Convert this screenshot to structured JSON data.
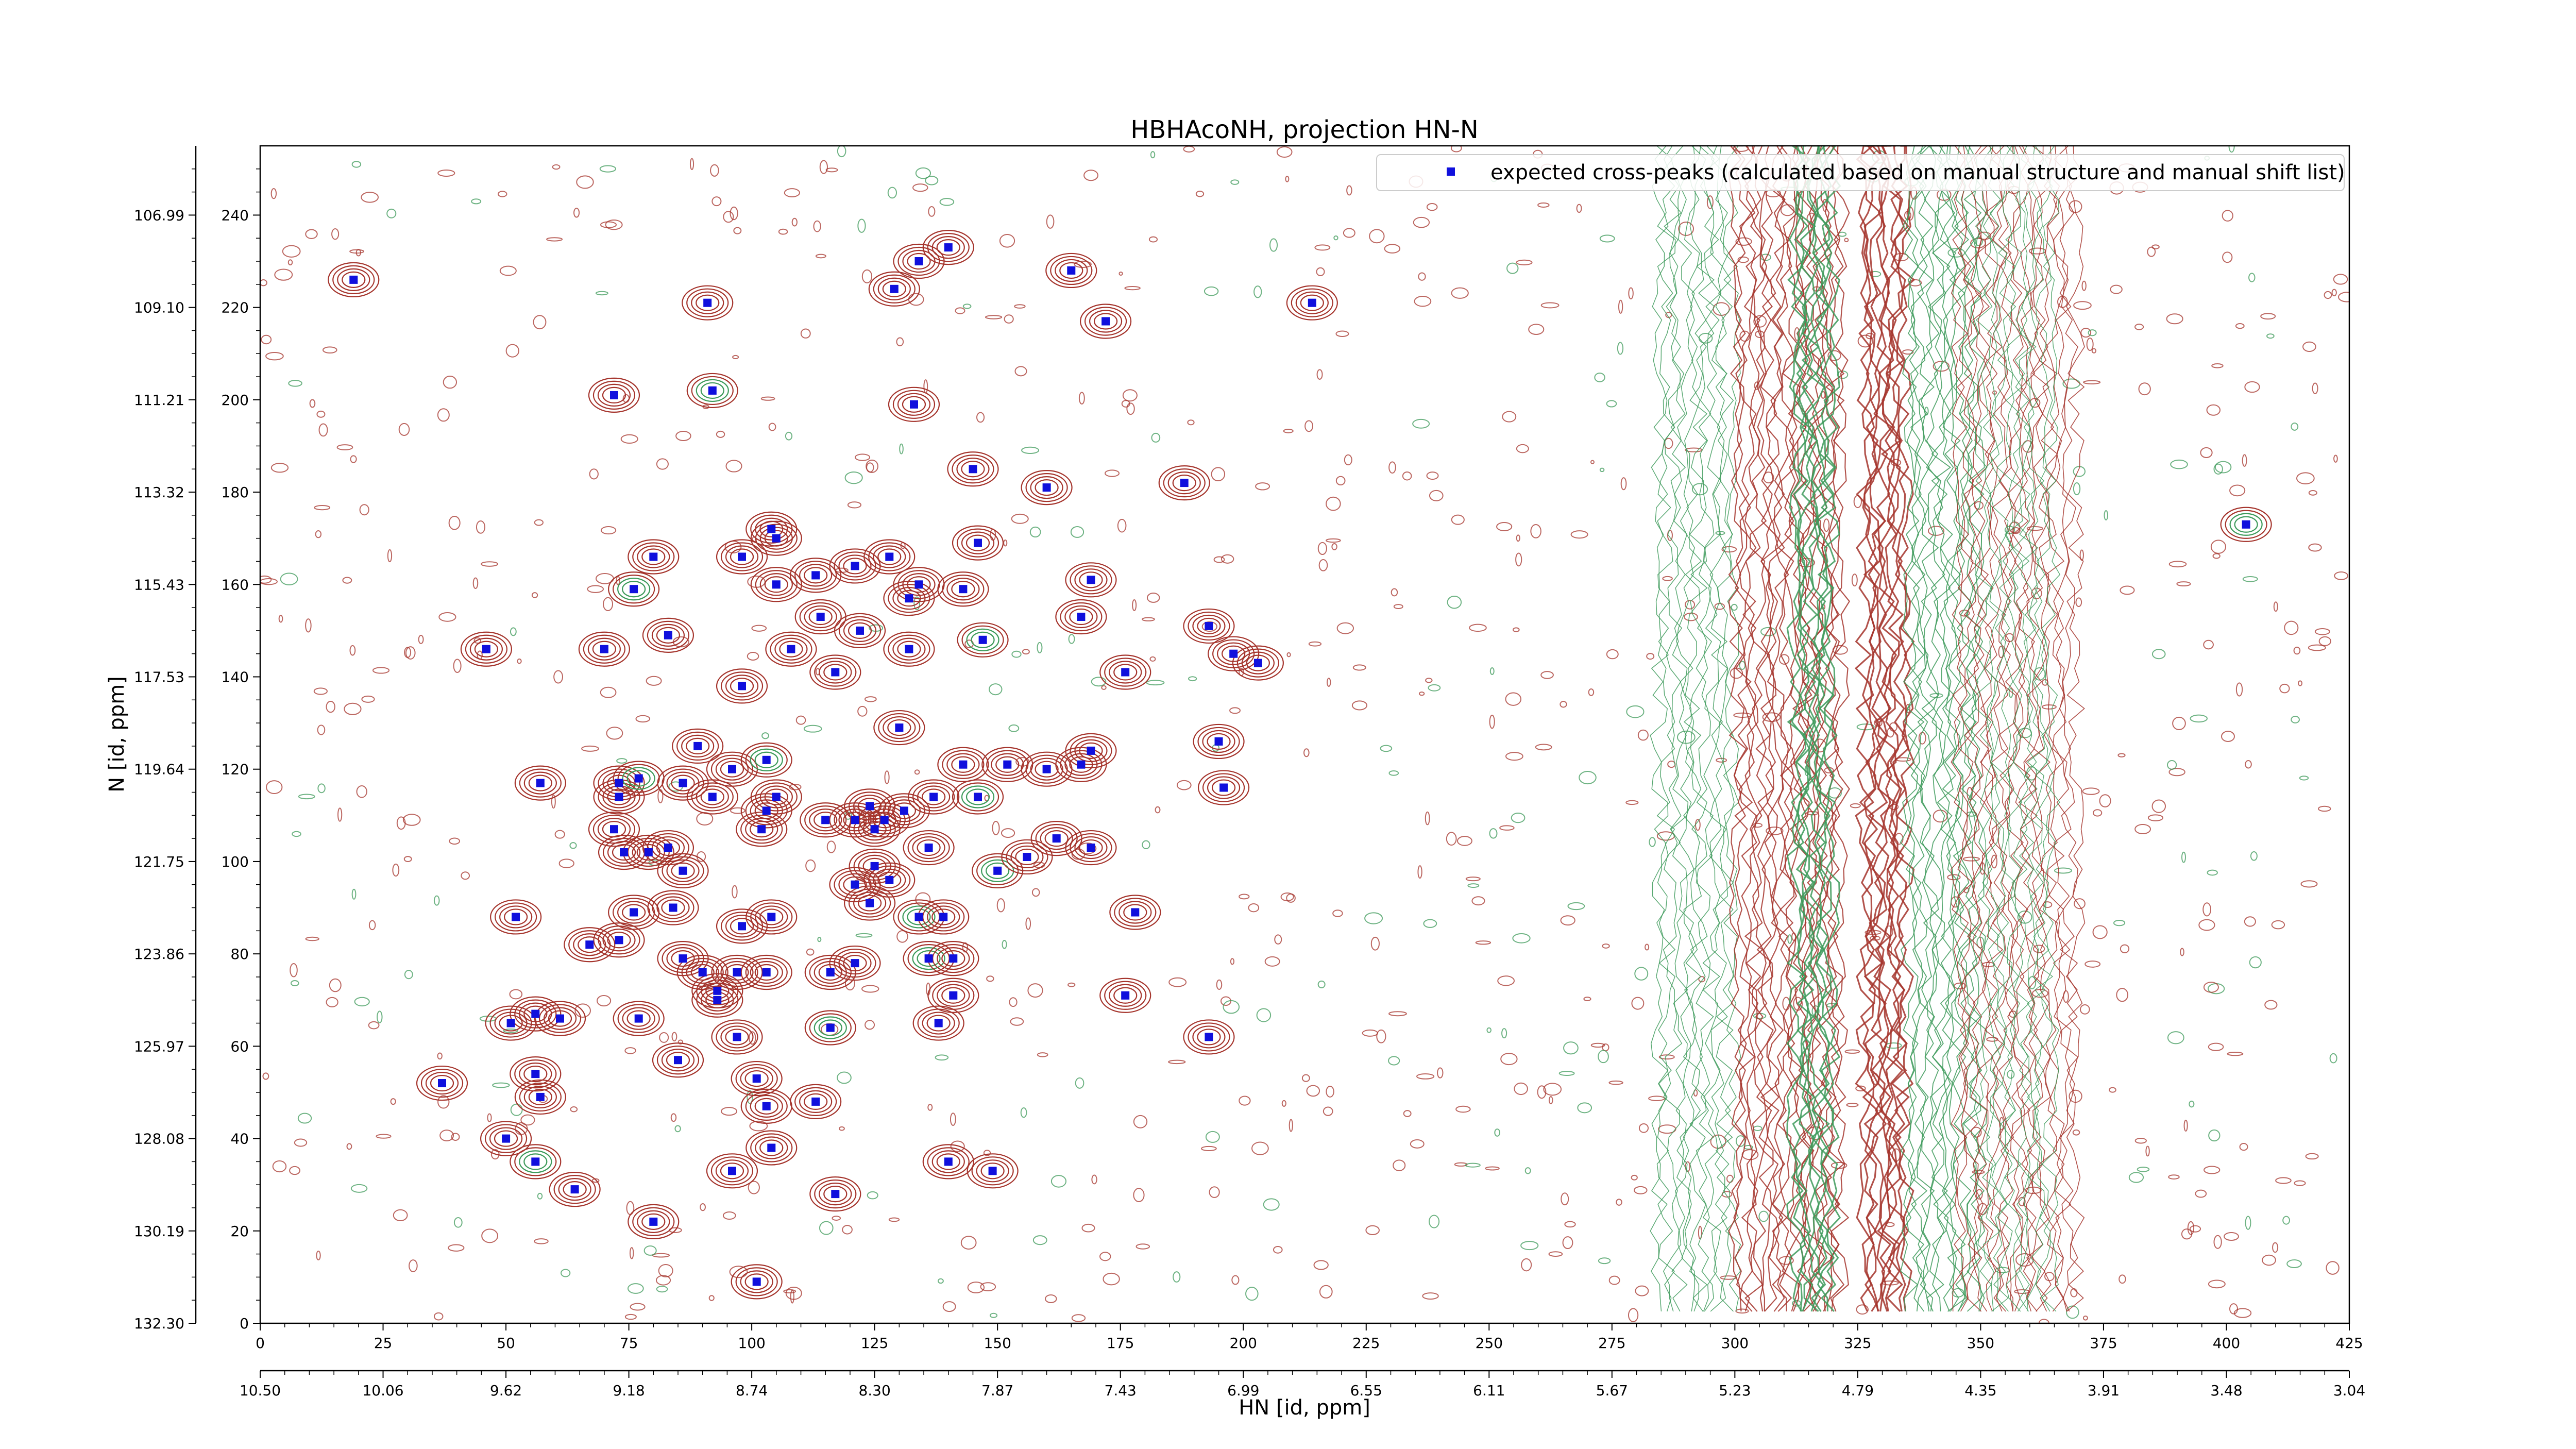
{
  "chart_data": {
    "type": "scatter",
    "title": "HBHAcoNH, projection HN-N",
    "xlabel": "HN [id, ppm]",
    "ylabel": "N [id, ppm]",
    "xlim": [
      0,
      425
    ],
    "ylim": [
      0,
      255
    ],
    "x_ticks": [
      0,
      25,
      50,
      75,
      100,
      125,
      150,
      175,
      200,
      225,
      250,
      275,
      300,
      325,
      350,
      375,
      400,
      425
    ],
    "y_ticks": [
      0,
      20,
      40,
      60,
      80,
      100,
      120,
      140,
      160,
      180,
      200,
      220,
      240
    ],
    "x_ppm_tick_labels": [
      "10.50",
      "10.06",
      "9.62",
      "9.18",
      "8.74",
      "8.30",
      "7.87",
      "7.43",
      "6.99",
      "6.55",
      "6.11",
      "5.67",
      "5.23",
      "4.79",
      "4.35",
      "3.91",
      "3.48",
      "3.04"
    ],
    "y_ppm_tick_labels": [
      "132.30",
      "130.19",
      "128.08",
      "125.97",
      "123.86",
      "121.75",
      "119.64",
      "117.53",
      "115.43",
      "113.32",
      "111.21",
      "109.10",
      "106.99"
    ],
    "legend": {
      "label": "expected cross-peaks (calculated based on manual structure and manual shift list)",
      "placement": "upper-right",
      "marker_color": "#1010dd"
    },
    "colors": {
      "contour_primary": "#a5342c",
      "contour_secondary": "#3d9a5a",
      "peak_marker": "#1010dd"
    },
    "series": [
      {
        "name": "expected cross-peaks (calculated based on manual structure and manual shift list)",
        "points": [
          [
            19,
            226
          ],
          [
            91,
            221
          ],
          [
            72,
            201
          ],
          [
            92,
            202
          ],
          [
            129,
            224
          ],
          [
            134,
            230
          ],
          [
            140,
            233
          ],
          [
            165,
            228
          ],
          [
            172,
            217
          ],
          [
            214,
            221
          ],
          [
            133,
            199
          ],
          [
            145,
            185
          ],
          [
            160,
            181
          ],
          [
            188,
            182
          ],
          [
            404,
            173
          ],
          [
            104,
            172
          ],
          [
            98,
            166
          ],
          [
            105,
            170
          ],
          [
            80,
            166
          ],
          [
            128,
            166
          ],
          [
            121,
            164
          ],
          [
            146,
            169
          ],
          [
            113,
            162
          ],
          [
            105,
            160
          ],
          [
            134,
            160
          ],
          [
            76,
            159
          ],
          [
            143,
            159
          ],
          [
            132,
            157
          ],
          [
            169,
            161
          ],
          [
            46,
            146
          ],
          [
            70,
            146
          ],
          [
            83,
            149
          ],
          [
            114,
            153
          ],
          [
            122,
            150
          ],
          [
            108,
            146
          ],
          [
            132,
            146
          ],
          [
            147,
            148
          ],
          [
            167,
            153
          ],
          [
            193,
            151
          ],
          [
            198,
            145
          ],
          [
            203,
            143
          ],
          [
            117,
            141
          ],
          [
            98,
            138
          ],
          [
            176,
            141
          ],
          [
            130,
            129
          ],
          [
            89,
            125
          ],
          [
            96,
            120
          ],
          [
            103,
            122
          ],
          [
            143,
            121
          ],
          [
            152,
            121
          ],
          [
            160,
            120
          ],
          [
            167,
            121
          ],
          [
            169,
            124
          ],
          [
            195,
            126
          ],
          [
            196,
            116
          ],
          [
            57,
            117
          ],
          [
            73,
            117
          ],
          [
            73,
            114
          ],
          [
            77,
            118
          ],
          [
            86,
            117
          ],
          [
            92,
            114
          ],
          [
            103,
            111
          ],
          [
            105,
            114
          ],
          [
            115,
            109
          ],
          [
            121,
            109
          ],
          [
            124,
            112
          ],
          [
            127,
            109
          ],
          [
            131,
            111
          ],
          [
            137,
            114
          ],
          [
            146,
            114
          ],
          [
            72,
            107
          ],
          [
            74,
            102
          ],
          [
            79,
            102
          ],
          [
            83,
            103
          ],
          [
            86,
            98
          ],
          [
            102,
            107
          ],
          [
            125,
            107
          ],
          [
            125,
            99
          ],
          [
            128,
            96
          ],
          [
            136,
            103
          ],
          [
            150,
            98
          ],
          [
            156,
            101
          ],
          [
            162,
            105
          ],
          [
            169,
            103
          ],
          [
            52,
            88
          ],
          [
            76,
            89
          ],
          [
            84,
            90
          ],
          [
            98,
            86
          ],
          [
            104,
            88
          ],
          [
            121,
            95
          ],
          [
            124,
            91
          ],
          [
            134,
            88
          ],
          [
            139,
            88
          ],
          [
            178,
            89
          ],
          [
            67,
            82
          ],
          [
            73,
            83
          ],
          [
            86,
            79
          ],
          [
            90,
            76
          ],
          [
            97,
            76
          ],
          [
            103,
            76
          ],
          [
            116,
            76
          ],
          [
            121,
            78
          ],
          [
            136,
            79
          ],
          [
            141,
            79
          ],
          [
            93,
            72
          ],
          [
            93,
            70
          ],
          [
            141,
            71
          ],
          [
            176,
            71
          ],
          [
            51,
            65
          ],
          [
            56,
            67
          ],
          [
            61,
            66
          ],
          [
            77,
            66
          ],
          [
            97,
            62
          ],
          [
            116,
            64
          ],
          [
            138,
            65
          ],
          [
            193,
            62
          ],
          [
            37,
            52
          ],
          [
            56,
            54
          ],
          [
            85,
            57
          ],
          [
            101,
            53
          ],
          [
            57,
            49
          ],
          [
            103,
            47
          ],
          [
            113,
            48
          ],
          [
            50,
            40
          ],
          [
            56,
            35
          ],
          [
            96,
            33
          ],
          [
            104,
            38
          ],
          [
            140,
            35
          ],
          [
            149,
            33
          ],
          [
            64,
            29
          ],
          [
            117,
            28
          ],
          [
            80,
            22
          ],
          [
            101,
            9
          ]
        ]
      }
    ]
  }
}
